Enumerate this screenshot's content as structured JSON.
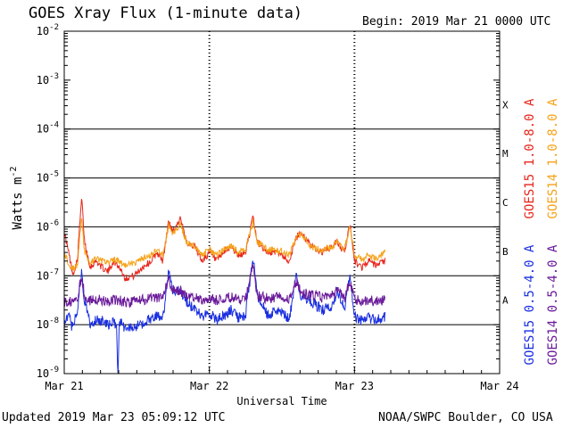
{
  "header": {
    "title": "GOES Xray Flux (1-minute data)",
    "begin_label": "Begin:",
    "begin_value": "2019 Mar 21 0000 UTC"
  },
  "footer": {
    "updated": "Updated 2019 Mar 23 05:09:12 UTC",
    "credit": "NOAA/SWPC Boulder, CO USA"
  },
  "chart_data": {
    "type": "line",
    "title": "GOES Xray Flux (1-minute data)",
    "xlabel": "Universal Time",
    "ylabel_base": "Watts m",
    "ylabel_exp": "-2",
    "yscale": "log",
    "ylim": [
      1e-09,
      0.01
    ],
    "xlim_days": [
      0,
      3
    ],
    "x_ticks": [
      {
        "day": 0,
        "label": "Mar 21"
      },
      {
        "day": 1,
        "label": "Mar 22"
      },
      {
        "day": 2,
        "label": "Mar 23"
      },
      {
        "day": 3,
        "label": "Mar 24"
      }
    ],
    "y_ticks": [
      {
        "exp": -2,
        "label": "-2"
      },
      {
        "exp": -3,
        "label": "-3"
      },
      {
        "exp": -4,
        "label": "-4"
      },
      {
        "exp": -5,
        "label": "-5"
      },
      {
        "exp": -6,
        "label": "-6"
      },
      {
        "exp": -7,
        "label": "-7"
      },
      {
        "exp": -8,
        "label": "-8"
      },
      {
        "exp": -9,
        "label": "-9"
      }
    ],
    "flare_classes": [
      {
        "label": "X",
        "lower": 0.0001
      },
      {
        "label": "M",
        "lower": 1e-05
      },
      {
        "label": "C",
        "lower": 1e-06
      },
      {
        "label": "B",
        "lower": 1e-07
      },
      {
        "label": "A",
        "lower": 1e-08
      }
    ],
    "data_end_day": 2.21,
    "series": [
      {
        "name": "GOES15 1.0-8.0 A",
        "color": "#e8261c",
        "points": [
          [
            0.0,
            8e-07
          ],
          [
            0.03,
            3e-07
          ],
          [
            0.06,
            1.1e-07
          ],
          [
            0.09,
            2e-07
          ],
          [
            0.12,
            4e-06
          ],
          [
            0.14,
            5e-07
          ],
          [
            0.18,
            1.5e-07
          ],
          [
            0.22,
            2e-07
          ],
          [
            0.26,
            1.5e-07
          ],
          [
            0.3,
            1.2e-07
          ],
          [
            0.34,
            2e-07
          ],
          [
            0.38,
            1.5e-07
          ],
          [
            0.42,
            9e-08
          ],
          [
            0.48,
            1e-07
          ],
          [
            0.54,
            1.5e-07
          ],
          [
            0.6,
            2e-07
          ],
          [
            0.64,
            3e-07
          ],
          [
            0.68,
            2e-07
          ],
          [
            0.72,
            1.3e-06
          ],
          [
            0.75,
            8e-07
          ],
          [
            0.8,
            1.5e-06
          ],
          [
            0.84,
            5e-07
          ],
          [
            0.9,
            4e-07
          ],
          [
            0.95,
            2e-07
          ],
          [
            1.0,
            3e-07
          ],
          [
            1.05,
            2e-07
          ],
          [
            1.1,
            3e-07
          ],
          [
            1.15,
            4e-07
          ],
          [
            1.2,
            2.5e-07
          ],
          [
            1.25,
            3e-07
          ],
          [
            1.3,
            1.6e-06
          ],
          [
            1.33,
            5e-07
          ],
          [
            1.4,
            3e-07
          ],
          [
            1.48,
            3e-07
          ],
          [
            1.55,
            2e-07
          ],
          [
            1.6,
            6e-07
          ],
          [
            1.63,
            8e-07
          ],
          [
            1.7,
            4e-07
          ],
          [
            1.78,
            3e-07
          ],
          [
            1.85,
            4e-07
          ],
          [
            1.88,
            5e-07
          ],
          [
            1.93,
            3e-07
          ],
          [
            1.97,
            1.2e-06
          ],
          [
            2.0,
            2e-07
          ],
          [
            2.05,
            1.5e-07
          ],
          [
            2.1,
            2e-07
          ],
          [
            2.15,
            1.6e-07
          ],
          [
            2.21,
            2e-07
          ]
        ]
      },
      {
        "name": "GOES14 1.0-8.0 A",
        "color": "#f5a31a",
        "points": [
          [
            0.0,
            3e-07
          ],
          [
            0.03,
            1.8e-07
          ],
          [
            0.06,
            1.4e-07
          ],
          [
            0.09,
            1.6e-07
          ],
          [
            0.12,
            1.5e-06
          ],
          [
            0.14,
            3e-07
          ],
          [
            0.18,
            1.8e-07
          ],
          [
            0.22,
            2.3e-07
          ],
          [
            0.26,
            2e-07
          ],
          [
            0.3,
            1.8e-07
          ],
          [
            0.34,
            2.2e-07
          ],
          [
            0.38,
            2e-07
          ],
          [
            0.42,
            1.6e-07
          ],
          [
            0.48,
            1.8e-07
          ],
          [
            0.54,
            2.2e-07
          ],
          [
            0.6,
            2.6e-07
          ],
          [
            0.64,
            3.4e-07
          ],
          [
            0.68,
            2.6e-07
          ],
          [
            0.72,
            1.1e-06
          ],
          [
            0.75,
            7e-07
          ],
          [
            0.8,
            1.2e-06
          ],
          [
            0.84,
            5e-07
          ],
          [
            0.9,
            4e-07
          ],
          [
            0.95,
            2.6e-07
          ],
          [
            1.0,
            3.4e-07
          ],
          [
            1.05,
            2.6e-07
          ],
          [
            1.1,
            3.4e-07
          ],
          [
            1.15,
            4e-07
          ],
          [
            1.2,
            3e-07
          ],
          [
            1.25,
            3.4e-07
          ],
          [
            1.3,
            1.3e-06
          ],
          [
            1.33,
            5e-07
          ],
          [
            1.4,
            3.4e-07
          ],
          [
            1.48,
            3.4e-07
          ],
          [
            1.55,
            2.6e-07
          ],
          [
            1.6,
            6e-07
          ],
          [
            1.63,
            7e-07
          ],
          [
            1.7,
            4e-07
          ],
          [
            1.78,
            3.4e-07
          ],
          [
            1.85,
            4e-07
          ],
          [
            1.88,
            5e-07
          ],
          [
            1.93,
            3.4e-07
          ],
          [
            1.97,
            1e-06
          ],
          [
            2.0,
            2.6e-07
          ],
          [
            2.05,
            2.2e-07
          ],
          [
            2.1,
            2.6e-07
          ],
          [
            2.15,
            2.2e-07
          ],
          [
            2.21,
            3e-07
          ]
        ]
      },
      {
        "name": "GOES15 0.5-4.0 A",
        "color": "#1a2fe0",
        "points": [
          [
            0.0,
            1e-08
          ],
          [
            0.03,
            1.5e-08
          ],
          [
            0.06,
            8e-09
          ],
          [
            0.09,
            2e-08
          ],
          [
            0.12,
            1.2e-07
          ],
          [
            0.14,
            3e-08
          ],
          [
            0.18,
            1e-08
          ],
          [
            0.22,
            1.3e-08
          ],
          [
            0.26,
            1.2e-08
          ],
          [
            0.3,
            1e-08
          ],
          [
            0.34,
            1.1e-08
          ],
          [
            0.36,
            1e-08
          ],
          [
            0.37,
            1e-09
          ],
          [
            0.38,
            1.2e-08
          ],
          [
            0.42,
            8e-09
          ],
          [
            0.48,
            9e-09
          ],
          [
            0.54,
            1e-08
          ],
          [
            0.6,
            1.4e-08
          ],
          [
            0.64,
            1.6e-08
          ],
          [
            0.68,
            1.4e-08
          ],
          [
            0.72,
            1.2e-07
          ],
          [
            0.75,
            5e-08
          ],
          [
            0.8,
            5e-08
          ],
          [
            0.84,
            3e-08
          ],
          [
            0.9,
            2e-08
          ],
          [
            0.95,
            1.5e-08
          ],
          [
            1.0,
            1.8e-08
          ],
          [
            1.05,
            1.3e-08
          ],
          [
            1.1,
            1.5e-08
          ],
          [
            1.15,
            2e-08
          ],
          [
            1.2,
            1.4e-08
          ],
          [
            1.25,
            1.6e-08
          ],
          [
            1.3,
            2.5e-07
          ],
          [
            1.33,
            4e-08
          ],
          [
            1.4,
            1.6e-08
          ],
          [
            1.48,
            2e-08
          ],
          [
            1.55,
            1.3e-08
          ],
          [
            1.6,
            1e-07
          ],
          [
            1.63,
            4e-08
          ],
          [
            1.7,
            3e-08
          ],
          [
            1.78,
            2e-08
          ],
          [
            1.85,
            2.5e-08
          ],
          [
            1.88,
            5e-08
          ],
          [
            1.93,
            2e-08
          ],
          [
            1.97,
            1e-07
          ],
          [
            2.0,
            1.5e-08
          ],
          [
            2.05,
            1.2e-08
          ],
          [
            2.1,
            1.4e-08
          ],
          [
            2.15,
            1.2e-08
          ],
          [
            2.21,
            1.5e-08
          ]
        ]
      },
      {
        "name": "GOES14 0.5-4.0 A",
        "color": "#6a1a9a",
        "points": [
          [
            0.0,
            3e-08
          ],
          [
            0.03,
            3e-08
          ],
          [
            0.06,
            3e-08
          ],
          [
            0.09,
            3.2e-08
          ],
          [
            0.12,
            1e-07
          ],
          [
            0.14,
            4e-08
          ],
          [
            0.18,
            3e-08
          ],
          [
            0.22,
            3.4e-08
          ],
          [
            0.26,
            3.2e-08
          ],
          [
            0.3,
            3e-08
          ],
          [
            0.34,
            3.2e-08
          ],
          [
            0.38,
            3.2e-08
          ],
          [
            0.42,
            2.8e-08
          ],
          [
            0.48,
            3e-08
          ],
          [
            0.54,
            3.2e-08
          ],
          [
            0.6,
            3.4e-08
          ],
          [
            0.64,
            3.6e-08
          ],
          [
            0.68,
            3.4e-08
          ],
          [
            0.72,
            9e-08
          ],
          [
            0.75,
            5e-08
          ],
          [
            0.8,
            5e-08
          ],
          [
            0.84,
            4e-08
          ],
          [
            0.9,
            3.6e-08
          ],
          [
            0.95,
            3.2e-08
          ],
          [
            1.0,
            3.5e-08
          ],
          [
            1.05,
            3.2e-08
          ],
          [
            1.1,
            3.4e-08
          ],
          [
            1.15,
            3.6e-08
          ],
          [
            1.2,
            3.3e-08
          ],
          [
            1.25,
            3.4e-08
          ],
          [
            1.3,
            1.8e-07
          ],
          [
            1.33,
            4e-08
          ],
          [
            1.4,
            3.4e-08
          ],
          [
            1.48,
            3.6e-08
          ],
          [
            1.55,
            3.2e-08
          ],
          [
            1.6,
            8e-08
          ],
          [
            1.63,
            4.5e-08
          ],
          [
            1.7,
            4e-08
          ],
          [
            1.78,
            3.6e-08
          ],
          [
            1.85,
            4e-08
          ],
          [
            1.88,
            5e-08
          ],
          [
            1.93,
            3.6e-08
          ],
          [
            1.97,
            8e-08
          ],
          [
            2.0,
            3.2e-08
          ],
          [
            2.05,
            3e-08
          ],
          [
            2.1,
            3.2e-08
          ],
          [
            2.15,
            3e-08
          ],
          [
            2.21,
            3.2e-08
          ]
        ]
      }
    ]
  }
}
